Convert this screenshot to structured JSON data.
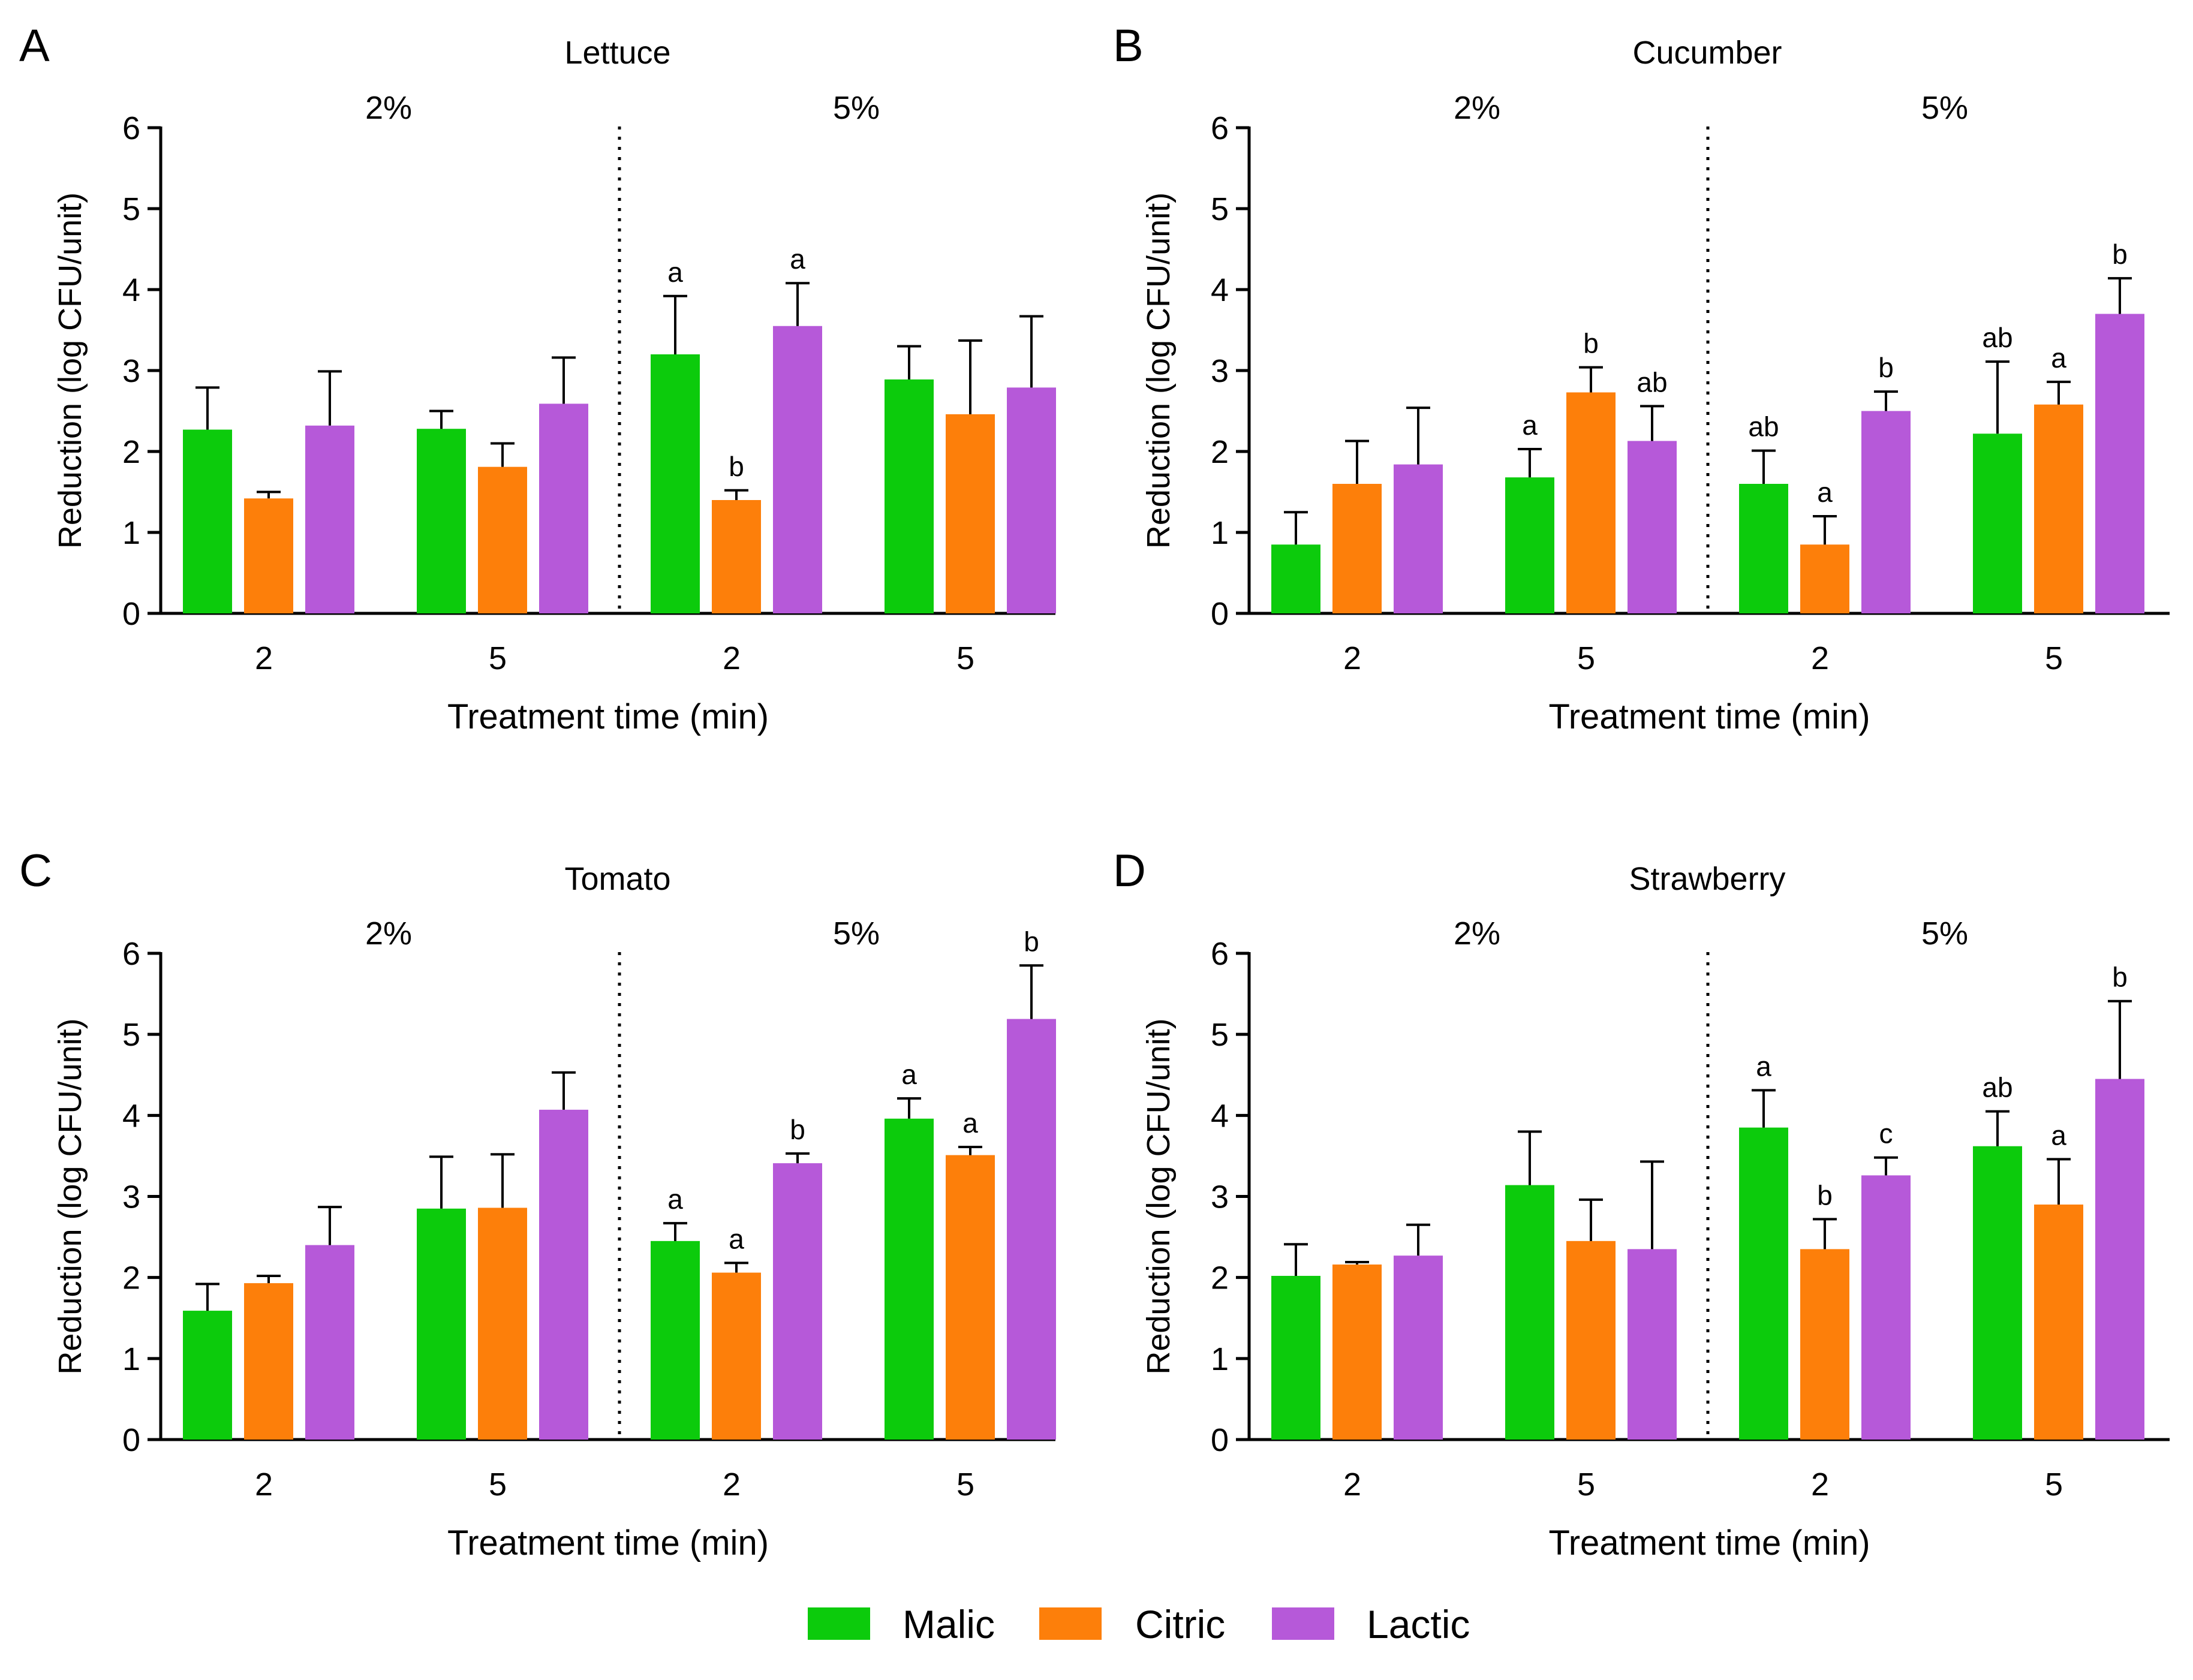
{
  "colors": {
    "Malic": "#0ccb0c",
    "Citric": "#fd7f0a",
    "Lactic": "#b659d9"
  },
  "legend": [
    {
      "name": "Malic",
      "color": "#0ccb0c"
    },
    {
      "name": "Citric",
      "color": "#fd7f0a"
    },
    {
      "name": "Lactic",
      "color": "#b659d9"
    }
  ],
  "chart_data": [
    {
      "type": "bar",
      "panel": "A",
      "title": "Lettuce",
      "groups": [
        "2%",
        "5%"
      ],
      "categories": [
        "2",
        "5",
        "2",
        "5"
      ],
      "xlabel": "Treatment time (min)",
      "ylabel": "Reduction (log CFU/unit)",
      "ylim": [
        0,
        6
      ],
      "yticks": [
        0,
        1,
        2,
        3,
        4,
        5,
        6
      ],
      "series": [
        {
          "name": "Malic",
          "values": [
            2.27,
            2.28,
            3.2,
            2.89
          ],
          "errors": [
            0.52,
            0.22,
            0.72,
            0.41
          ],
          "labels": [
            "",
            "",
            "a",
            ""
          ]
        },
        {
          "name": "Citric",
          "values": [
            1.42,
            1.81,
            1.4,
            2.46
          ],
          "errors": [
            0.08,
            0.29,
            0.12,
            0.91
          ],
          "labels": [
            "",
            "",
            "b",
            ""
          ]
        },
        {
          "name": "Lactic",
          "values": [
            2.32,
            2.59,
            3.55,
            2.79
          ],
          "errors": [
            0.67,
            0.57,
            0.53,
            0.88
          ],
          "labels": [
            "",
            "",
            "a",
            ""
          ]
        }
      ]
    },
    {
      "type": "bar",
      "panel": "B",
      "title": "Cucumber",
      "groups": [
        "2%",
        "5%"
      ],
      "categories": [
        "2",
        "5",
        "2",
        "5"
      ],
      "xlabel": "Treatment time (min)",
      "ylabel": "Reduction (log CFU/unit)",
      "ylim": [
        0,
        6
      ],
      "yticks": [
        0,
        1,
        2,
        3,
        4,
        5,
        6
      ],
      "series": [
        {
          "name": "Malic",
          "values": [
            0.85,
            1.68,
            1.6,
            2.22
          ],
          "errors": [
            0.4,
            0.35,
            0.41,
            0.89
          ],
          "labels": [
            "",
            "a",
            "ab",
            "ab"
          ]
        },
        {
          "name": "Citric",
          "values": [
            1.6,
            2.73,
            0.85,
            2.58
          ],
          "errors": [
            0.53,
            0.31,
            0.35,
            0.28
          ],
          "labels": [
            "",
            "b",
            "a",
            "a"
          ]
        },
        {
          "name": "Lactic",
          "values": [
            1.84,
            2.13,
            2.5,
            3.7
          ],
          "errors": [
            0.7,
            0.43,
            0.24,
            0.44
          ],
          "labels": [
            "",
            "ab",
            "b",
            "b"
          ]
        }
      ]
    },
    {
      "type": "bar",
      "panel": "C",
      "title": "Tomato",
      "groups": [
        "2%",
        "5%"
      ],
      "categories": [
        "2",
        "5",
        "2",
        "5"
      ],
      "xlabel": "Treatment time (min)",
      "ylabel": "Reduction (log CFU/unit)",
      "ylim": [
        0,
        6
      ],
      "yticks": [
        0,
        1,
        2,
        3,
        4,
        5,
        6
      ],
      "series": [
        {
          "name": "Malic",
          "values": [
            1.59,
            2.85,
            2.45,
            3.96
          ],
          "errors": [
            0.33,
            0.64,
            0.22,
            0.25
          ],
          "labels": [
            "",
            "",
            "a",
            "a"
          ]
        },
        {
          "name": "Citric",
          "values": [
            1.93,
            2.86,
            2.06,
            3.51
          ],
          "errors": [
            0.09,
            0.66,
            0.12,
            0.1
          ],
          "labels": [
            "",
            "",
            "a",
            "a"
          ]
        },
        {
          "name": "Lactic",
          "values": [
            2.4,
            4.07,
            3.41,
            5.19
          ],
          "errors": [
            0.47,
            0.46,
            0.12,
            0.66
          ],
          "labels": [
            "",
            "",
            "b",
            "b"
          ]
        }
      ]
    },
    {
      "type": "bar",
      "panel": "D",
      "title": "Strawberry",
      "groups": [
        "2%",
        "5%"
      ],
      "categories": [
        "2",
        "5",
        "2",
        "5"
      ],
      "xlabel": "Treatment time (min)",
      "ylabel": "Reduction (log CFU/unit)",
      "ylim": [
        0,
        6
      ],
      "yticks": [
        0,
        1,
        2,
        3,
        4,
        5,
        6
      ],
      "series": [
        {
          "name": "Malic",
          "values": [
            2.02,
            3.14,
            3.85,
            3.62
          ],
          "errors": [
            0.39,
            0.66,
            0.46,
            0.43
          ],
          "labels": [
            "",
            "",
            "a",
            "ab"
          ]
        },
        {
          "name": "Citric",
          "values": [
            2.16,
            2.45,
            2.35,
            2.9
          ],
          "errors": [
            0.03,
            0.51,
            0.37,
            0.56
          ],
          "labels": [
            "",
            "",
            "b",
            "a"
          ]
        },
        {
          "name": "Lactic",
          "values": [
            2.27,
            2.35,
            3.26,
            4.45
          ],
          "errors": [
            0.38,
            1.08,
            0.22,
            0.96
          ],
          "labels": [
            "",
            "",
            "c",
            "b"
          ]
        }
      ]
    }
  ]
}
